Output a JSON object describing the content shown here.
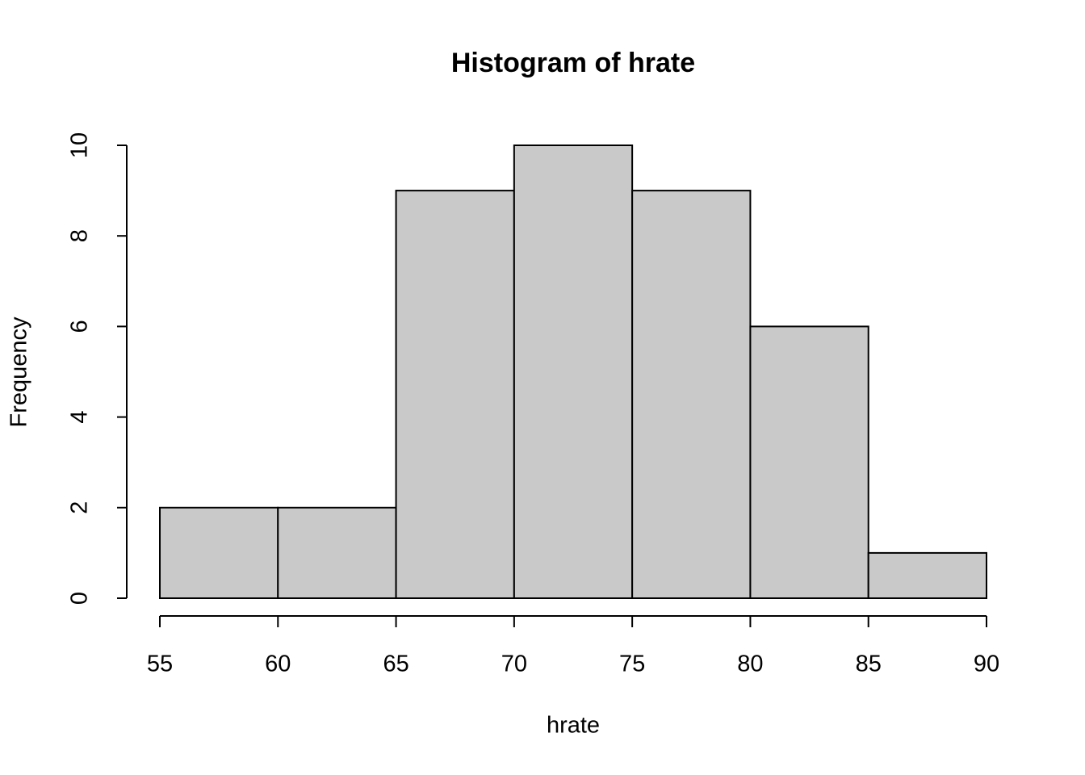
{
  "chart_data": {
    "type": "histogram",
    "title": "Histogram of hrate",
    "xlabel": "hrate",
    "ylabel": "Frequency",
    "bins": [
      55,
      60,
      65,
      70,
      75,
      80,
      85,
      90
    ],
    "values": [
      2,
      2,
      9,
      10,
      9,
      6,
      1
    ],
    "color": "#c9c9c9",
    "xlim": [
      55,
      90
    ],
    "xticks": [
      55,
      60,
      65,
      70,
      75,
      80,
      85,
      90
    ],
    "ylim": [
      0,
      10
    ],
    "yticks": [
      0,
      2,
      4,
      6,
      8,
      10
    ]
  }
}
